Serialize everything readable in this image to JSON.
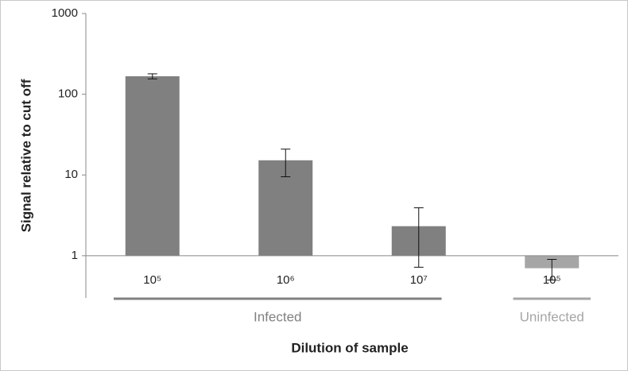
{
  "chart_data": {
    "type": "bar",
    "categories": [
      "10⁵",
      "10⁶",
      "10⁷",
      "10⁵"
    ],
    "values": [
      167,
      15.2,
      2.32,
      0.7
    ],
    "errors": [
      12,
      5.7,
      1.6,
      0.2
    ],
    "colors": [
      "#808080",
      "#808080",
      "#808080",
      "#a6a6a6"
    ],
    "groups": [
      {
        "name": "Infected",
        "size": 3,
        "color": "#808080"
      },
      {
        "name": "Uninfected",
        "size": 1,
        "color": "#a6a6a6"
      }
    ],
    "ylabel": "Signal relative to cut off",
    "xlabel": "Dilution of sample",
    "ylim": [
      0.3,
      1000
    ],
    "yticks": [
      1,
      10,
      100,
      1000
    ],
    "log_y": true,
    "grid": false
  }
}
